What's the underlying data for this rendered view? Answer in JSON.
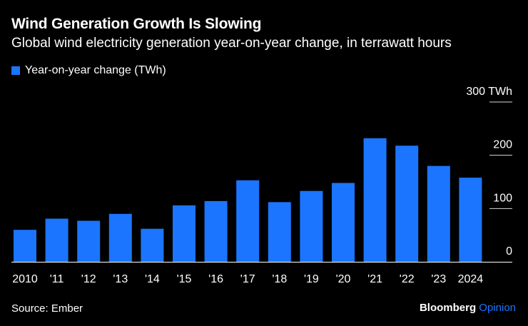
{
  "colors": {
    "background": "#000000",
    "bar": "#1C75FF",
    "text": "#ffffff",
    "axis": "#ffffff",
    "brand_opinion": "#1C75FF"
  },
  "source": "Source: Ember",
  "brand": {
    "name": "Bloomberg",
    "suffix": "Opinion"
  },
  "chart_data": {
    "type": "bar",
    "title": "Wind Generation Growth Is Slowing",
    "subtitle": "Global wind electricity generation year-on-year change, in terrawatt hours",
    "legend": "Year-on-year change (TWh)",
    "categories": [
      "2010",
      "'11",
      "'12",
      "'13",
      "'14",
      "'15",
      "'16",
      "'17",
      "'18",
      "'19",
      "'20",
      "'21",
      "'22",
      "'23",
      "2024"
    ],
    "values": [
      60,
      81,
      77,
      90,
      62,
      106,
      114,
      153,
      112,
      133,
      148,
      232,
      218,
      180,
      158
    ],
    "ylim": [
      0,
      300
    ],
    "yticks": [
      0,
      100,
      200,
      300
    ],
    "ytick_labels": [
      "0",
      "100",
      "200",
      "300 TWh"
    ],
    "xlabel": "",
    "ylabel": "",
    "legend_position": "top-left",
    "grid": true
  }
}
